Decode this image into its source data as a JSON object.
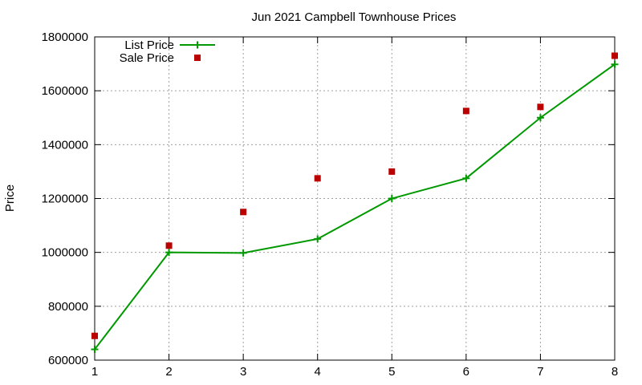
{
  "chart_data": {
    "type": "line",
    "title": "Jun 2021 Campbell Townhouse Prices",
    "xlabel": "",
    "ylabel": "Price",
    "x": [
      1,
      2,
      3,
      4,
      5,
      6,
      7,
      8
    ],
    "xlim": [
      1,
      8
    ],
    "ylim": [
      600000,
      1800000
    ],
    "x_ticks": [
      "1",
      "2",
      "3",
      "4",
      "5",
      "6",
      "7",
      "8"
    ],
    "y_ticks": [
      "600000",
      "800000",
      "1000000",
      "1200000",
      "1400000",
      "1600000",
      "1800000"
    ],
    "grid": true,
    "legend_position": "top-left",
    "series": [
      {
        "name": "List Price",
        "style": "line-with-plus-markers",
        "color": "#009900",
        "values": [
          640000,
          1000000,
          998000,
          1050000,
          1200000,
          1275000,
          1500000,
          1698000
        ]
      },
      {
        "name": "Sale Price",
        "style": "square-markers",
        "color": "#bb0000",
        "values": [
          690000,
          1025000,
          1150000,
          1275000,
          1300000,
          1525000,
          1540000,
          1730000
        ]
      }
    ]
  }
}
